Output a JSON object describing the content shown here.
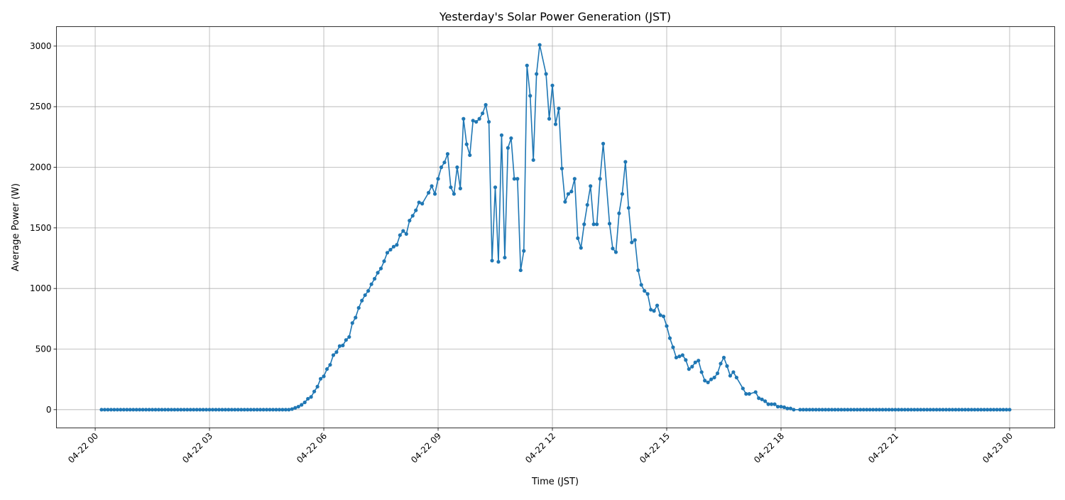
{
  "chart_data": {
    "type": "line",
    "title": "Yesterday's Solar Power Generation (JST)",
    "xlabel": "Time (JST)",
    "ylabel": "Average Power (W)",
    "xlim": [
      "04-21 22:59",
      "04-23 01:11"
    ],
    "ylim": [
      -150.5,
      3160.5
    ],
    "grid": true,
    "colors": {
      "series": "#1f77b4",
      "grid": "#b0b0b0"
    },
    "x_ticks": [
      {
        "label": "04-22 00",
        "value": "04-22 00:00"
      },
      {
        "label": "04-22 03",
        "value": "04-22 03:00"
      },
      {
        "label": "04-22 06",
        "value": "04-22 06:00"
      },
      {
        "label": "04-22 09",
        "value": "04-22 09:00"
      },
      {
        "label": "04-22 12",
        "value": "04-22 12:00"
      },
      {
        "label": "04-22 15",
        "value": "04-22 15:00"
      },
      {
        "label": "04-22 18",
        "value": "04-22 18:00"
      },
      {
        "label": "04-22 21",
        "value": "04-22 21:00"
      },
      {
        "label": "04-23 00",
        "value": "04-23 00:00"
      }
    ],
    "y_ticks": [
      "0",
      "500",
      "1000",
      "1500",
      "2000",
      "2500",
      "3000"
    ],
    "series": [
      {
        "x": [
          "04-22 00:10",
          "04-22 00:15",
          "04-22 00:20",
          "04-22 00:25",
          "04-22 00:30",
          "04-22 00:35",
          "04-22 00:40",
          "04-22 00:45",
          "04-22 00:50",
          "04-22 00:55",
          "04-22 01:00",
          "04-22 01:05",
          "04-22 01:10",
          "04-22 01:15",
          "04-22 01:20",
          "04-22 01:25",
          "04-22 01:30",
          "04-22 01:35",
          "04-22 01:40",
          "04-22 01:45",
          "04-22 01:50",
          "04-22 01:55",
          "04-22 02:00",
          "04-22 02:05",
          "04-22 02:10",
          "04-22 02:15",
          "04-22 02:20",
          "04-22 02:25",
          "04-22 02:30",
          "04-22 02:35",
          "04-22 02:40",
          "04-22 02:45",
          "04-22 02:50",
          "04-22 02:55",
          "04-22 03:00",
          "04-22 03:05",
          "04-22 03:10",
          "04-22 03:15",
          "04-22 03:20",
          "04-22 03:25",
          "04-22 03:30",
          "04-22 03:35",
          "04-22 03:40",
          "04-22 03:45",
          "04-22 03:50",
          "04-22 03:55",
          "04-22 04:00",
          "04-22 04:05",
          "04-22 04:10",
          "04-22 04:15",
          "04-22 04:20",
          "04-22 04:25",
          "04-22 04:30",
          "04-22 04:35",
          "04-22 04:40",
          "04-22 04:45",
          "04-22 04:50",
          "04-22 04:55",
          "04-22 05:00",
          "04-22 05:05",
          "04-22 05:10",
          "04-22 05:15",
          "04-22 05:20",
          "04-22 05:25",
          "04-22 05:30",
          "04-22 05:35",
          "04-22 05:40",
          "04-22 05:45",
          "04-22 05:50",
          "04-22 05:55",
          "04-22 06:00",
          "04-22 06:05",
          "04-22 06:10",
          "04-22 06:15",
          "04-22 06:20",
          "04-22 06:25",
          "04-22 06:30",
          "04-22 06:35",
          "04-22 06:40",
          "04-22 06:45",
          "04-22 06:50",
          "04-22 06:55",
          "04-22 07:00",
          "04-22 07:05",
          "04-22 07:10",
          "04-22 07:15",
          "04-22 07:20",
          "04-22 07:25",
          "04-22 07:30",
          "04-22 07:35",
          "04-22 07:40",
          "04-22 07:45",
          "04-22 07:50",
          "04-22 07:55",
          "04-22 08:00",
          "04-22 08:05",
          "04-22 08:10",
          "04-22 08:15",
          "04-22 08:20",
          "04-22 08:25",
          "04-22 08:30",
          "04-22 08:35",
          "04-22 08:45",
          "04-22 08:50",
          "04-22 08:55",
          "04-22 09:00",
          "04-22 09:05",
          "04-22 09:10",
          "04-22 09:15",
          "04-22 09:20",
          "04-22 09:25",
          "04-22 09:30",
          "04-22 09:35",
          "04-22 09:40",
          "04-22 09:45",
          "04-22 09:50",
          "04-22 09:55",
          "04-22 10:00",
          "04-22 10:05",
          "04-22 10:10",
          "04-22 10:15",
          "04-22 10:20",
          "04-22 10:25",
          "04-22 10:30",
          "04-22 10:35",
          "04-22 10:40",
          "04-22 10:45",
          "04-22 10:50",
          "04-22 10:55",
          "04-22 11:00",
          "04-22 11:05",
          "04-22 11:10",
          "04-22 11:15",
          "04-22 11:20",
          "04-22 11:25",
          "04-22 11:30",
          "04-22 11:35",
          "04-22 11:40",
          "04-22 11:50",
          "04-22 11:55",
          "04-22 12:00",
          "04-22 12:05",
          "04-22 12:10",
          "04-22 12:15",
          "04-22 12:20",
          "04-22 12:25",
          "04-22 12:30",
          "04-22 12:35",
          "04-22 12:40",
          "04-22 12:45",
          "04-22 12:50",
          "04-22 12:55",
          "04-22 13:00",
          "04-22 13:05",
          "04-22 13:10",
          "04-22 13:15",
          "04-22 13:20",
          "04-22 13:30",
          "04-22 13:35",
          "04-22 13:40",
          "04-22 13:45",
          "04-22 13:50",
          "04-22 13:55",
          "04-22 14:00",
          "04-22 14:05",
          "04-22 14:10",
          "04-22 14:15",
          "04-22 14:20",
          "04-22 14:25",
          "04-22 14:30",
          "04-22 14:35",
          "04-22 14:40",
          "04-22 14:45",
          "04-22 14:50",
          "04-22 14:55",
          "04-22 15:00",
          "04-22 15:05",
          "04-22 15:10",
          "04-22 15:15",
          "04-22 15:20",
          "04-22 15:25",
          "04-22 15:30",
          "04-22 15:35",
          "04-22 15:40",
          "04-22 15:45",
          "04-22 15:50",
          "04-22 15:55",
          "04-22 16:00",
          "04-22 16:05",
          "04-22 16:10",
          "04-22 16:15",
          "04-22 16:20",
          "04-22 16:25",
          "04-22 16:30",
          "04-22 16:35",
          "04-22 16:40",
          "04-22 16:45",
          "04-22 16:50",
          "04-22 17:00",
          "04-22 17:05",
          "04-22 17:10",
          "04-22 17:20",
          "04-22 17:25",
          "04-22 17:30",
          "04-22 17:35",
          "04-22 17:40",
          "04-22 17:45",
          "04-22 17:50",
          "04-22 17:55",
          "04-22 18:00",
          "04-22 18:05",
          "04-22 18:10",
          "04-22 18:15",
          "04-22 18:20",
          "04-22 18:30",
          "04-22 18:35",
          "04-22 18:40",
          "04-22 18:45",
          "04-22 18:50",
          "04-22 18:55",
          "04-22 19:00",
          "04-22 19:05",
          "04-22 19:10",
          "04-22 19:15",
          "04-22 19:20",
          "04-22 19:25",
          "04-22 19:30",
          "04-22 19:35",
          "04-22 19:40",
          "04-22 19:45",
          "04-22 19:50",
          "04-22 19:55",
          "04-22 20:00",
          "04-22 20:05",
          "04-22 20:10",
          "04-22 20:15",
          "04-22 20:20",
          "04-22 20:25",
          "04-22 20:30",
          "04-22 20:35",
          "04-22 20:40",
          "04-22 20:45",
          "04-22 20:50",
          "04-22 20:55",
          "04-22 21:00",
          "04-22 21:05",
          "04-22 21:10",
          "04-22 21:15",
          "04-22 21:20",
          "04-22 21:25",
          "04-22 21:30",
          "04-22 21:35",
          "04-22 21:40",
          "04-22 21:45",
          "04-22 21:50",
          "04-22 21:55",
          "04-22 22:00",
          "04-22 22:05",
          "04-22 22:10",
          "04-22 22:15",
          "04-22 22:20",
          "04-22 22:25",
          "04-22 22:30",
          "04-22 22:35",
          "04-22 22:40",
          "04-22 22:45",
          "04-22 22:50",
          "04-22 22:55",
          "04-22 23:00",
          "04-22 23:05",
          "04-22 23:10",
          "04-22 23:15",
          "04-22 23:20",
          "04-22 23:25",
          "04-22 23:30",
          "04-22 23:35",
          "04-22 23:40",
          "04-22 23:45",
          "04-22 23:50",
          "04-22 23:55",
          "04-23 00:00"
        ],
        "y": [
          0,
          0,
          0,
          0,
          0,
          0,
          0,
          0,
          0,
          0,
          0,
          0,
          0,
          0,
          0,
          0,
          0,
          0,
          0,
          0,
          0,
          0,
          0,
          0,
          0,
          0,
          0,
          0,
          0,
          0,
          0,
          0,
          0,
          0,
          0,
          0,
          0,
          0,
          0,
          0,
          0,
          0,
          0,
          0,
          0,
          0,
          0,
          0,
          0,
          0,
          0,
          0,
          0,
          0,
          0,
          0,
          0,
          0,
          0,
          0,
          5,
          15,
          25,
          40,
          60,
          90,
          105,
          150,
          190,
          255,
          275,
          335,
          370,
          450,
          475,
          525,
          530,
          575,
          600,
          715,
          760,
          840,
          900,
          945,
          980,
          1035,
          1080,
          1130,
          1165,
          1225,
          1295,
          1320,
          1345,
          1360,
          1440,
          1475,
          1450,
          1560,
          1600,
          1645,
          1710,
          1700,
          1790,
          1845,
          1780,
          1905,
          2000,
          2040,
          2110,
          1835,
          1780,
          2000,
          1825,
          2400,
          2190,
          2100,
          2385,
          2375,
          2400,
          2445,
          2515,
          2375,
          1230,
          1835,
          1220,
          2265,
          1255,
          2160,
          2240,
          1905,
          1905,
          1150,
          1310,
          2840,
          2590,
          2060,
          2770,
          3010,
          2770,
          2400,
          2675,
          2355,
          2485,
          1990,
          1715,
          1780,
          1800,
          1905,
          1415,
          1335,
          1530,
          1690,
          1845,
          1530,
          1530,
          1905,
          2195,
          1535,
          1330,
          1300,
          1620,
          1780,
          2045,
          1665,
          1380,
          1400,
          1150,
          1030,
          980,
          955,
          825,
          815,
          860,
          780,
          770,
          690,
          590,
          515,
          430,
          440,
          450,
          410,
          335,
          355,
          390,
          405,
          310,
          240,
          225,
          250,
          265,
          300,
          380,
          430,
          360,
          280,
          310,
          265,
          175,
          130,
          130,
          145,
          95,
          85,
          70,
          45,
          45,
          45,
          25,
          25,
          20,
          10,
          10,
          0,
          0,
          0,
          0,
          0,
          0,
          0,
          0,
          0,
          0,
          0,
          0,
          0,
          0,
          0,
          0,
          0,
          0,
          0,
          0,
          0,
          0,
          0,
          0,
          0,
          0,
          0,
          0,
          0,
          0,
          0,
          0,
          0,
          0,
          0,
          0,
          0,
          0,
          0,
          0,
          0,
          0,
          0,
          0,
          0,
          0,
          0,
          0,
          0,
          0,
          0,
          0,
          0,
          0,
          0,
          0,
          0,
          0,
          0,
          0,
          0,
          0,
          0,
          0,
          0,
          0,
          0,
          0
        ]
      }
    ]
  }
}
